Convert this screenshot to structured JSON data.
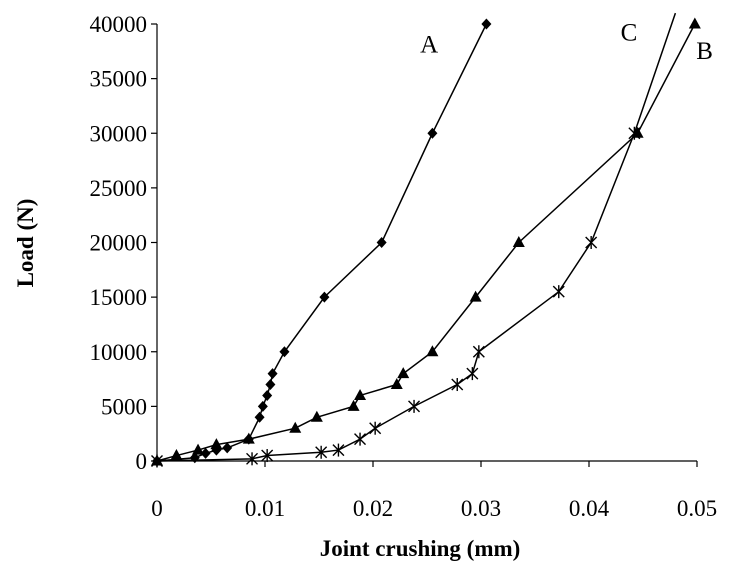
{
  "chart_data": {
    "type": "line",
    "title": "",
    "xlabel": "Joint crushing (mm)",
    "ylabel": "Load (N)",
    "xlim": [
      0,
      0.05
    ],
    "ylim": [
      0,
      40000
    ],
    "x_ticks": [
      "0",
      "0.01",
      "0.02",
      "0.03",
      "0.04",
      "0.05"
    ],
    "y_ticks": [
      "0",
      "5000",
      "10000",
      "15000",
      "20000",
      "25000",
      "30000",
      "35000",
      "40000"
    ],
    "grid": false,
    "legend": "none",
    "series": [
      {
        "name": "A",
        "marker": "diamond",
        "x": [
          0,
          0.0035,
          0.0045,
          0.0055,
          0.0065,
          0.0085,
          0.0095,
          0.0098,
          0.0102,
          0.0105,
          0.0107,
          0.0118,
          0.0155,
          0.0208,
          0.0255,
          0.0305
        ],
        "y": [
          0,
          300,
          700,
          1000,
          1200,
          2000,
          4000,
          5000,
          6000,
          7000,
          8000,
          10000,
          15000,
          20000,
          30000,
          40000
        ]
      },
      {
        "name": "B",
        "marker": "triangle",
        "x": [
          0,
          0.0018,
          0.0038,
          0.0055,
          0.0085,
          0.0128,
          0.0148,
          0.0182,
          0.0188,
          0.0222,
          0.0228,
          0.0255,
          0.0295,
          0.0335,
          0.0445,
          0.0498
        ],
        "y": [
          0,
          500,
          1000,
          1500,
          2000,
          3000,
          4000,
          5000,
          6000,
          7000,
          8000,
          10000,
          15000,
          20000,
          30000,
          40000
        ]
      },
      {
        "name": "C",
        "marker": "star",
        "x": [
          0,
          0.0088,
          0.0102,
          0.0152,
          0.0168,
          0.0188,
          0.0202,
          0.0238,
          0.0278,
          0.0292,
          0.0298,
          0.0372,
          0.0402,
          0.0442,
          0.048
        ],
        "y": [
          0,
          200,
          500,
          800,
          1000,
          2000,
          3000,
          5000,
          7000,
          8000,
          10000,
          15500,
          20000,
          30000,
          41000
        ]
      }
    ],
    "series_labels": [
      {
        "text": "A",
        "x": 0.0252,
        "y": 38200
      },
      {
        "text": "B",
        "x": 0.0507,
        "y": 37600
      },
      {
        "text": "C",
        "x": 0.0437,
        "y": 39300
      }
    ]
  }
}
